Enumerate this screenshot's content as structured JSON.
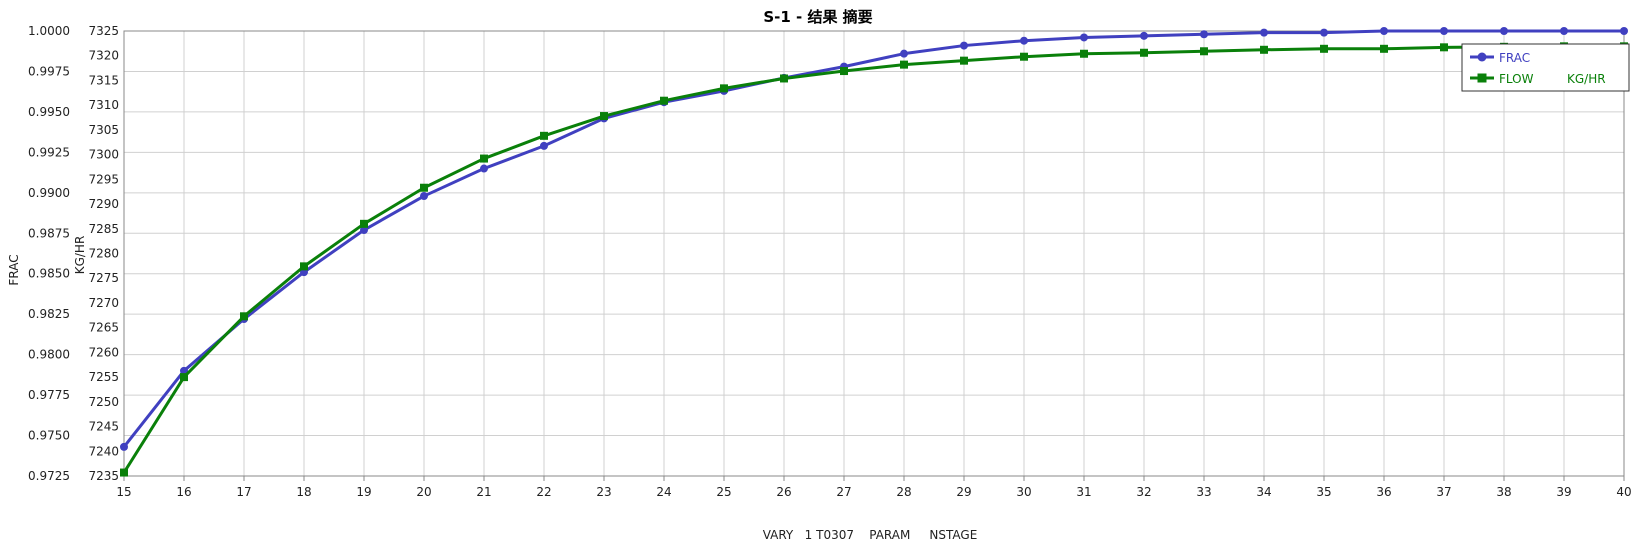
{
  "chart_data": {
    "type": "line",
    "title": "S-1 - 结果 摘要",
    "xlabel": "VARY   1 T0307    PARAM     NSTAGE",
    "ylabel_left": "FRAC",
    "ylabel_right": "KG/HR",
    "x": [
      15,
      16,
      17,
      18,
      19,
      20,
      21,
      22,
      23,
      24,
      25,
      26,
      27,
      28,
      29,
      30,
      31,
      32,
      33,
      34,
      35,
      36,
      37,
      38,
      39,
      40
    ],
    "x_ticks": [
      "15",
      "16",
      "17",
      "18",
      "19",
      "20",
      "21",
      "22",
      "23",
      "24",
      "25",
      "26",
      "27",
      "28",
      "29",
      "30",
      "31",
      "32",
      "33",
      "34",
      "35",
      "36",
      "37",
      "38",
      "39",
      "40"
    ],
    "y_left_lim": [
      0.9725,
      1.0
    ],
    "y_left_ticks": [
      "0.9725",
      "0.9750",
      "0.9775",
      "0.9800",
      "0.9825",
      "0.9850",
      "0.9875",
      "0.9900",
      "0.9925",
      "0.9950",
      "0.9975",
      "1.0000"
    ],
    "y_right_lim": [
      7235,
      7325
    ],
    "y_right_ticks": [
      "7235",
      "7240",
      "7245",
      "7250",
      "7255",
      "7260",
      "7265",
      "7270",
      "7275",
      "7280",
      "7285",
      "7290",
      "7295",
      "7300",
      "7305",
      "7310",
      "7315",
      "7320",
      "7325"
    ],
    "grid": true,
    "legend_position": "top-right",
    "series": [
      {
        "name": "FRAC",
        "unit": "",
        "axis": "left",
        "color": "#4040c0",
        "marker": "circle",
        "values": [
          0.9743,
          0.979,
          0.9822,
          0.9851,
          0.9877,
          0.9898,
          0.9915,
          0.9929,
          0.9946,
          0.9956,
          0.9963,
          0.9971,
          0.9978,
          0.9986,
          0.9991,
          0.9994,
          0.9996,
          0.9997,
          0.9998,
          0.9999,
          0.9999,
          1.0,
          1.0,
          1.0,
          1.0,
          1.0
        ]
      },
      {
        "name": "FLOW",
        "unit": "KG/HR",
        "axis": "right",
        "color": "#0a800a",
        "marker": "square",
        "values": [
          7235.7,
          7255.0,
          7267.3,
          7277.4,
          7286.0,
          7293.3,
          7299.2,
          7303.8,
          7307.8,
          7310.9,
          7313.4,
          7315.4,
          7316.9,
          7318.2,
          7319.0,
          7319.8,
          7320.4,
          7320.6,
          7320.9,
          7321.2,
          7321.4,
          7321.4,
          7321.7,
          7321.8,
          7321.9,
          7321.9
        ]
      }
    ]
  }
}
